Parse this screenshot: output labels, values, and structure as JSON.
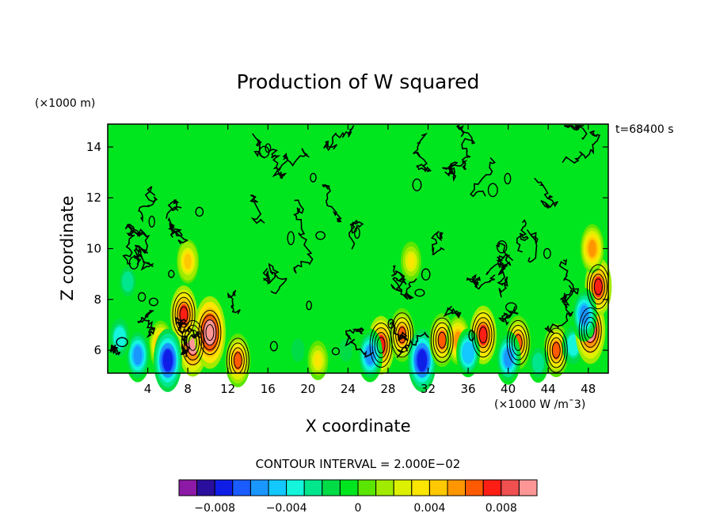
{
  "chart_data": {
    "type": "heatmap",
    "title": "Production of W squared",
    "xlabel": "X coordinate",
    "ylabel": "Z coordinate",
    "y_units": "(×1000 m)",
    "x_units": "(×1000 W /m¯3)",
    "time_label": "t=68400 s",
    "contour_interval_label": "CONTOUR INTERVAL = 2.000E−02",
    "xlim": [
      0,
      50
    ],
    "ylim": [
      5.1,
      14.9
    ],
    "x_ticks": [
      4,
      8,
      12,
      16,
      20,
      24,
      28,
      32,
      36,
      40,
      44,
      48
    ],
    "y_ticks": [
      6,
      8,
      10,
      12,
      14
    ],
    "x_tick_labels": [
      "4",
      "8",
      "12",
      "16",
      "20",
      "24",
      "28",
      "32",
      "36",
      "40",
      "44",
      "48"
    ],
    "y_tick_labels": [
      "6",
      "8",
      "10",
      "12",
      "14"
    ],
    "colorbar": {
      "min": -0.01,
      "max": 0.01,
      "levels": [
        -0.01,
        -0.009,
        -0.008,
        -0.007,
        -0.006,
        -0.005,
        -0.004,
        -0.003,
        -0.002,
        -0.001,
        0,
        0.001,
        0.002,
        0.003,
        0.004,
        0.005,
        0.006,
        0.007,
        0.008,
        0.009,
        0.01
      ],
      "colors": [
        "#8c1aa6",
        "#2a0f9e",
        "#0f1ee6",
        "#1a5cff",
        "#1a96ff",
        "#13c8ff",
        "#14f5dc",
        "#00e68c",
        "#00dc46",
        "#00e61e",
        "#5ae600",
        "#a0eb00",
        "#dcf000",
        "#fae600",
        "#ffc800",
        "#ff9600",
        "#ff5a00",
        "#ff1e14",
        "#f05050",
        "#ff9696"
      ],
      "tick_values": [
        -0.008,
        -0.004,
        0,
        0.004,
        0.008
      ],
      "tick_labels": [
        "−0.008",
        "−0.004",
        "0",
        "0.004",
        "0.008"
      ]
    },
    "background_value": 0.0,
    "hotspots": [
      {
        "x": 8.5,
        "z": 6.3,
        "value": 0.009
      },
      {
        "x": 10.2,
        "z": 6.7,
        "value": 0.01
      },
      {
        "x": 7.6,
        "z": 7.4,
        "value": 0.007
      },
      {
        "x": 5.3,
        "z": 6.2,
        "value": 0.005
      },
      {
        "x": 6.0,
        "z": 5.6,
        "value": -0.008
      },
      {
        "x": 3.0,
        "z": 5.8,
        "value": -0.006
      },
      {
        "x": 1.2,
        "z": 6.5,
        "value": -0.004
      },
      {
        "x": 2.0,
        "z": 8.7,
        "value": -0.003
      },
      {
        "x": 8.0,
        "z": 9.5,
        "value": 0.004
      },
      {
        "x": 13.0,
        "z": 5.6,
        "value": 0.006
      },
      {
        "x": 27.3,
        "z": 6.2,
        "value": 0.007
      },
      {
        "x": 29.4,
        "z": 6.6,
        "value": 0.006
      },
      {
        "x": 30.3,
        "z": 9.5,
        "value": 0.003
      },
      {
        "x": 26.2,
        "z": 5.8,
        "value": -0.006
      },
      {
        "x": 23.8,
        "z": 6.0,
        "value": -0.002
      },
      {
        "x": 31.4,
        "z": 5.6,
        "value": -0.008
      },
      {
        "x": 33.4,
        "z": 6.4,
        "value": 0.006
      },
      {
        "x": 35.0,
        "z": 6.4,
        "value": 0.005
      },
      {
        "x": 37.5,
        "z": 6.6,
        "value": 0.007
      },
      {
        "x": 36.0,
        "z": 5.9,
        "value": -0.005
      },
      {
        "x": 41.0,
        "z": 6.3,
        "value": 0.006
      },
      {
        "x": 40.0,
        "z": 5.7,
        "value": -0.006
      },
      {
        "x": 44.8,
        "z": 6.0,
        "value": 0.006
      },
      {
        "x": 46.5,
        "z": 6.2,
        "value": -0.004
      },
      {
        "x": 48.2,
        "z": 6.8,
        "value": 0.009
      },
      {
        "x": 49.0,
        "z": 8.5,
        "value": 0.007
      },
      {
        "x": 48.4,
        "z": 10.0,
        "value": 0.005
      },
      {
        "x": 47.6,
        "z": 7.4,
        "value": -0.006
      },
      {
        "x": 43.0,
        "z": 5.5,
        "value": -0.003
      },
      {
        "x": 19.0,
        "z": 6.0,
        "value": -0.002
      },
      {
        "x": 21.0,
        "z": 5.6,
        "value": 0.003
      }
    ]
  }
}
